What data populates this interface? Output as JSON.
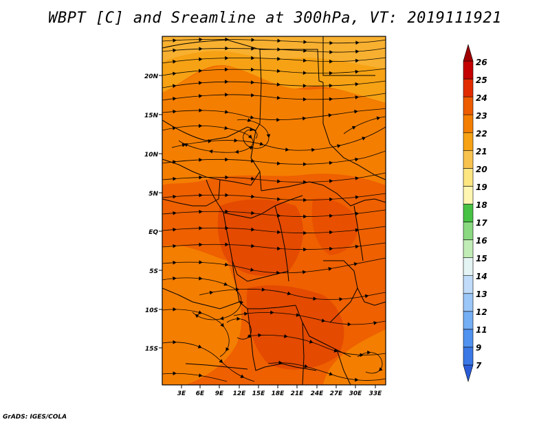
{
  "title": "WBPT [C] and Sreamline at 300hPa, VT: 2019111921",
  "credit": "GrADS: IGES/COLA",
  "map": {
    "lon_range": [
      0,
      36
    ],
    "lat_range": [
      -20,
      24
    ],
    "lon_ticks": [
      "3E",
      "6E",
      "9E",
      "12E",
      "15E",
      "18E",
      "21E",
      "24E",
      "27E",
      "30E",
      "33E"
    ],
    "lat_ticks": [
      "20N",
      "15N",
      "10N",
      "5N",
      "EQ",
      "5S",
      "10S",
      "15S"
    ],
    "background_field": "WBPT 22-24 C",
    "vectors": "streamlines"
  },
  "colorbar": {
    "labels": [
      "7",
      "9",
      "11",
      "12",
      "13",
      "14",
      "15",
      "16",
      "17",
      "18",
      "19",
      "20",
      "21",
      "22",
      "23",
      "24",
      "25",
      "26"
    ],
    "colors": [
      "#2a5cd8",
      "#3a78e6",
      "#5092f0",
      "#74aef5",
      "#9ac6f8",
      "#c0dcfa",
      "#e4f4f4",
      "#c2ecb6",
      "#8ad880",
      "#48c244",
      "#fff6b2",
      "#fce682",
      "#f8c24e",
      "#f6a214",
      "#f47e00",
      "#ee5c00",
      "#e22c00",
      "#c40000",
      "#a00000"
    ]
  }
}
